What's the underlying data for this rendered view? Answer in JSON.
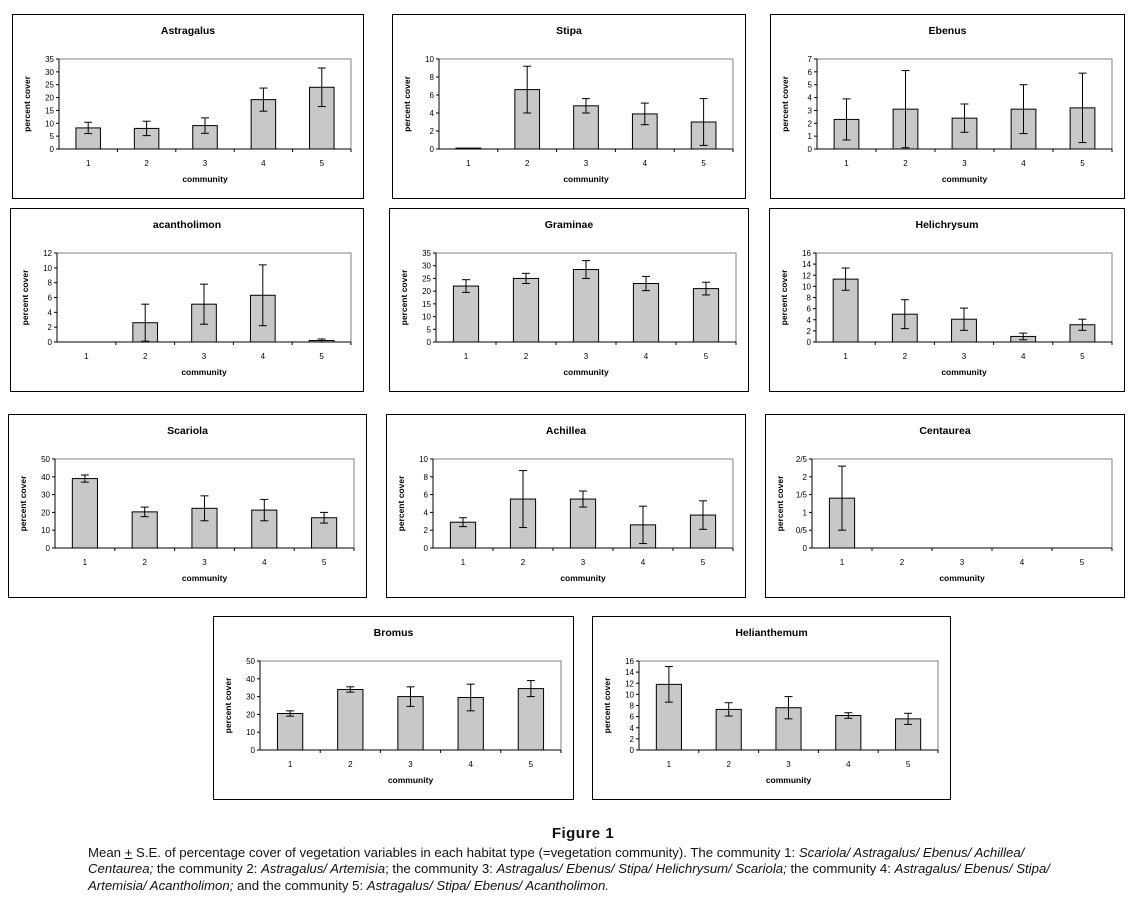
{
  "figure": {
    "title": "Figure 1",
    "caption": [
      {
        "t": "Mean ",
        "i": false
      },
      {
        "t": "+",
        "i": false,
        "u": true
      },
      {
        "t": " S.E. of percentage cover of vegetation variables in each habitat type (=vegetation community). The community 1: ",
        "i": false
      },
      {
        "t": "Scariola/ Astragalus/ Ebenus/ Achillea/ Centaurea;",
        "i": true
      },
      {
        "t": " the community 2: ",
        "i": false
      },
      {
        "t": "Astragalus/ Artemisia",
        "i": true
      },
      {
        "t": "; the community 3: ",
        "i": false
      },
      {
        "t": "Astragalus/ Ebenus/ Stipa/ Helichrysum/ Scariola;",
        "i": true
      },
      {
        "t": " the community 4: ",
        "i": false
      },
      {
        "t": "Astragalus/ Ebenus/ Stipa/ Artemisia/ Acantholimon;",
        "i": true
      },
      {
        "t": " and the community 5: ",
        "i": false
      },
      {
        "t": "Astragalus/ Stipa/ Ebenus/ Acantholimon.",
        "i": true
      }
    ]
  },
  "chart_data": [
    {
      "type": "bar",
      "title": "Astragalus",
      "xlabel": "community",
      "ylabel": "percent cover",
      "categories": [
        "1",
        "2",
        "3",
        "4",
        "5"
      ],
      "values": [
        8.2,
        8.0,
        9.1,
        19.2,
        24.0
      ],
      "errors": [
        2.2,
        2.8,
        3.0,
        4.5,
        7.5
      ],
      "ylim": [
        0,
        35
      ],
      "yticks": [
        0,
        5,
        10,
        15,
        20,
        25,
        30,
        35
      ],
      "ytick_labels": [
        "0",
        "5",
        "10",
        "15",
        "20",
        "25",
        "30",
        "35"
      ]
    },
    {
      "type": "bar",
      "title": "Stipa",
      "xlabel": "community",
      "ylabel": "percent cover",
      "categories": [
        "1",
        "2",
        "3",
        "4",
        "5"
      ],
      "values": [
        0.1,
        6.6,
        4.8,
        3.9,
        3.0
      ],
      "errors": [
        0,
        2.6,
        0.8,
        1.2,
        2.6
      ],
      "ylim": [
        0,
        10
      ],
      "yticks": [
        0,
        2,
        4,
        6,
        8,
        10
      ],
      "ytick_labels": [
        "0",
        "2",
        "4",
        "6",
        "8",
        "10"
      ]
    },
    {
      "type": "bar",
      "title": "Ebenus",
      "xlabel": "community",
      "ylabel": "percent cover",
      "categories": [
        "1",
        "2",
        "3",
        "4",
        "5"
      ],
      "values": [
        2.3,
        3.1,
        2.4,
        3.1,
        3.2
      ],
      "errors": [
        1.6,
        3.0,
        1.1,
        1.9,
        2.7
      ],
      "ylim": [
        0,
        7
      ],
      "yticks": [
        0,
        1,
        2,
        3,
        4,
        5,
        6,
        7
      ],
      "ytick_labels": [
        "0",
        "1",
        "2",
        "3",
        "4",
        "5",
        "6",
        "7"
      ]
    },
    {
      "type": "bar",
      "title": "acantholimon",
      "xlabel": "community",
      "ylabel": "percent cover",
      "categories": [
        "1",
        "2",
        "3",
        "4",
        "5"
      ],
      "values": [
        0,
        2.6,
        5.1,
        6.3,
        0.2
      ],
      "errors": [
        0,
        2.5,
        2.7,
        4.1,
        0.2
      ],
      "ylim": [
        0,
        12
      ],
      "yticks": [
        0,
        2,
        4,
        6,
        8,
        10,
        12
      ],
      "ytick_labels": [
        "0",
        "2",
        "4",
        "6",
        "8",
        "10",
        "12"
      ]
    },
    {
      "type": "bar",
      "title": "Graminae",
      "xlabel": "community",
      "ylabel": "percent cover",
      "categories": [
        "1",
        "2",
        "3",
        "4",
        "5"
      ],
      "values": [
        22.0,
        25.0,
        28.5,
        23.0,
        21.0
      ],
      "errors": [
        2.5,
        2.0,
        3.5,
        2.8,
        2.5
      ],
      "ylim": [
        0,
        35
      ],
      "yticks": [
        0,
        5,
        10,
        15,
        20,
        25,
        30,
        35
      ],
      "ytick_labels": [
        "0",
        "5",
        "10",
        "15",
        "20",
        "25",
        "30",
        "35"
      ]
    },
    {
      "type": "bar",
      "title": "Helichrysum",
      "xlabel": "community",
      "ylabel": "percent cover",
      "categories": [
        "1",
        "2",
        "3",
        "4",
        "5"
      ],
      "values": [
        11.3,
        5.0,
        4.1,
        1.0,
        3.1
      ],
      "errors": [
        2.0,
        2.6,
        2.0,
        0.6,
        1.0
      ],
      "ylim": [
        0,
        16
      ],
      "yticks": [
        0,
        2,
        4,
        6,
        8,
        10,
        12,
        14,
        16
      ],
      "ytick_labels": [
        "0",
        "2",
        "4",
        "6",
        "8",
        "10",
        "12",
        "14",
        "16"
      ]
    },
    {
      "type": "bar",
      "title": "Scariola",
      "xlabel": "community",
      "ylabel": "percent cover",
      "categories": [
        "1",
        "2",
        "3",
        "4",
        "5"
      ],
      "values": [
        39.0,
        20.3,
        22.3,
        21.3,
        17.0
      ],
      "errors": [
        2.0,
        2.7,
        7.0,
        6.0,
        3.0
      ],
      "ylim": [
        0,
        50
      ],
      "yticks": [
        0,
        10,
        20,
        30,
        40,
        50
      ],
      "ytick_labels": [
        "0",
        "10",
        "20",
        "30",
        "40",
        "50"
      ]
    },
    {
      "type": "bar",
      "title": "Achillea",
      "xlabel": "community",
      "ylabel": "percent cover",
      "categories": [
        "1",
        "2",
        "3",
        "4",
        "5"
      ],
      "values": [
        2.9,
        5.5,
        5.5,
        2.6,
        3.7
      ],
      "errors": [
        0.5,
        3.2,
        0.9,
        2.1,
        1.6
      ],
      "ylim": [
        0,
        10
      ],
      "yticks": [
        0,
        2,
        4,
        6,
        8,
        10
      ],
      "ytick_labels": [
        "0",
        "2",
        "4",
        "6",
        "8",
        "10"
      ]
    },
    {
      "type": "bar",
      "title": "Centaurea",
      "xlabel": "community",
      "ylabel": "percent cover",
      "categories": [
        "1",
        "2",
        "3",
        "4",
        "5"
      ],
      "values": [
        1.4,
        0,
        0,
        0,
        0
      ],
      "errors": [
        0.9,
        0,
        0,
        0,
        0
      ],
      "ylim": [
        0,
        2.5
      ],
      "yticks": [
        0,
        0.5,
        1,
        1.5,
        2,
        2.5
      ],
      "ytick_labels": [
        "0",
        "0/5",
        "1",
        "1/5",
        "2",
        "2/5"
      ]
    },
    {
      "type": "bar",
      "title": "Bromus",
      "xlabel": "community",
      "ylabel": "percent cover",
      "categories": [
        "1",
        "2",
        "3",
        "4",
        "5"
      ],
      "values": [
        20.5,
        34.0,
        30.0,
        29.5,
        34.5
      ],
      "errors": [
        1.5,
        1.5,
        5.5,
        7.5,
        4.5
      ],
      "ylim": [
        0,
        50
      ],
      "yticks": [
        0,
        10,
        20,
        30,
        40,
        50
      ],
      "ytick_labels": [
        "0",
        "10",
        "20",
        "30",
        "40",
        "50"
      ]
    },
    {
      "type": "bar",
      "title": "Helianthemum",
      "xlabel": "community",
      "ylabel": "percent cover",
      "categories": [
        "1",
        "2",
        "3",
        "4",
        "5"
      ],
      "values": [
        11.8,
        7.3,
        7.6,
        6.2,
        5.6
      ],
      "errors": [
        3.2,
        1.2,
        2.0,
        0.5,
        1.0
      ],
      "ylim": [
        0,
        16
      ],
      "yticks": [
        0,
        2,
        4,
        6,
        8,
        10,
        12,
        14,
        16
      ],
      "ytick_labels": [
        "0",
        "2",
        "4",
        "6",
        "8",
        "10",
        "12",
        "14",
        "16"
      ]
    }
  ]
}
